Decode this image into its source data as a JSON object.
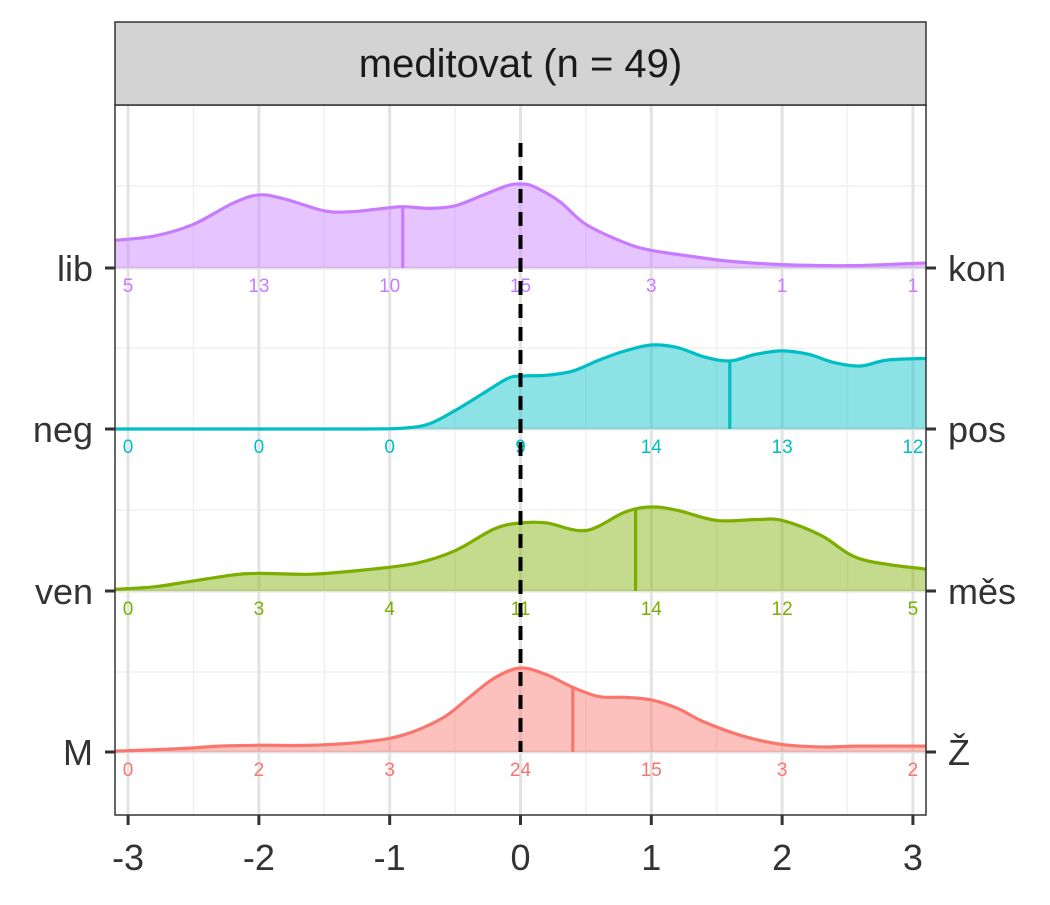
{
  "chart_data": {
    "type": "area",
    "panel_title": "meditovat (n = 49)",
    "xlim": [
      -3.1,
      3.1
    ],
    "x_ticks": [
      -3,
      -2,
      -1,
      0,
      1,
      2,
      3
    ],
    "x_tick_labels": [
      "-3",
      "-2",
      "-1",
      "0",
      "1",
      "2",
      "3"
    ],
    "reference_line_x": 0,
    "count_positions": [
      -3,
      -2,
      -1,
      0,
      1,
      2,
      3
    ],
    "grid": true,
    "colors": {
      "strip_bg": "#d3d3d3",
      "grid_major": "#e3e3e3",
      "grid_minor": "#f0f0f0",
      "reference_line": "#000000",
      "axis_text": "#333333"
    },
    "rows": [
      {
        "left_label": "lib",
        "right_label": "kon",
        "color": "#c77cff",
        "mean": -0.9,
        "counts": [
          "5",
          "13",
          "10",
          "15",
          "3",
          "1",
          "1"
        ],
        "density_x": [
          -3.1,
          -2.8,
          -2.5,
          -2.2,
          -2.0,
          -1.8,
          -1.5,
          -1.3,
          -1.1,
          -0.9,
          -0.7,
          -0.5,
          -0.3,
          -0.1,
          0.0,
          0.1,
          0.3,
          0.5,
          0.8,
          1.0,
          1.3,
          1.6,
          2.0,
          2.3,
          2.6,
          3.1
        ],
        "density_y": [
          0.33,
          0.38,
          0.52,
          0.77,
          0.87,
          0.82,
          0.68,
          0.67,
          0.7,
          0.73,
          0.71,
          0.74,
          0.86,
          0.98,
          1.0,
          0.97,
          0.79,
          0.52,
          0.3,
          0.21,
          0.14,
          0.08,
          0.04,
          0.03,
          0.03,
          0.06
        ]
      },
      {
        "left_label": "neg",
        "right_label": "pos",
        "color": "#00bfc4",
        "mean": 1.6,
        "counts": [
          "0",
          "0",
          "0",
          "9",
          "14",
          "13",
          "12"
        ],
        "density_x": [
          -3.1,
          -2.0,
          -1.2,
          -0.9,
          -0.7,
          -0.5,
          -0.3,
          -0.1,
          0.0,
          0.2,
          0.4,
          0.6,
          0.8,
          1.0,
          1.2,
          1.4,
          1.6,
          1.8,
          2.0,
          2.2,
          2.4,
          2.6,
          2.8,
          3.1
        ],
        "density_y": [
          0.0,
          0.0,
          0.0,
          0.01,
          0.06,
          0.22,
          0.41,
          0.6,
          0.63,
          0.64,
          0.69,
          0.82,
          0.93,
          1.0,
          0.97,
          0.86,
          0.81,
          0.89,
          0.93,
          0.89,
          0.79,
          0.75,
          0.82,
          0.84
        ]
      },
      {
        "left_label": "ven",
        "right_label": "měs",
        "color": "#7cae00",
        "mean": 0.88,
        "counts": [
          "0",
          "3",
          "4",
          "11",
          "14",
          "12",
          "5"
        ],
        "density_x": [
          -3.1,
          -2.8,
          -2.5,
          -2.2,
          -2.0,
          -1.6,
          -1.2,
          -0.8,
          -0.5,
          -0.2,
          0.0,
          0.2,
          0.5,
          0.8,
          1.0,
          1.2,
          1.5,
          1.8,
          2.0,
          2.3,
          2.6,
          3.1
        ],
        "density_y": [
          0.02,
          0.05,
          0.12,
          0.19,
          0.21,
          0.2,
          0.25,
          0.33,
          0.48,
          0.74,
          0.81,
          0.81,
          0.72,
          0.94,
          1.0,
          0.96,
          0.84,
          0.85,
          0.84,
          0.66,
          0.38,
          0.26
        ]
      },
      {
        "left_label": "M",
        "right_label": "Ž",
        "color": "#f8766d",
        "mean": 0.4,
        "counts": [
          "0",
          "2",
          "3",
          "24",
          "15",
          "3",
          "2"
        ],
        "density_x": [
          -3.1,
          -2.6,
          -2.3,
          -2.0,
          -1.6,
          -1.2,
          -0.9,
          -0.6,
          -0.4,
          -0.2,
          0.0,
          0.2,
          0.4,
          0.6,
          0.8,
          1.0,
          1.2,
          1.4,
          1.7,
          2.0,
          2.3,
          2.6,
          3.1
        ],
        "density_y": [
          0.01,
          0.04,
          0.07,
          0.08,
          0.08,
          0.12,
          0.2,
          0.4,
          0.64,
          0.88,
          1.0,
          0.92,
          0.77,
          0.66,
          0.65,
          0.62,
          0.52,
          0.36,
          0.19,
          0.09,
          0.06,
          0.07,
          0.07
        ]
      }
    ]
  }
}
